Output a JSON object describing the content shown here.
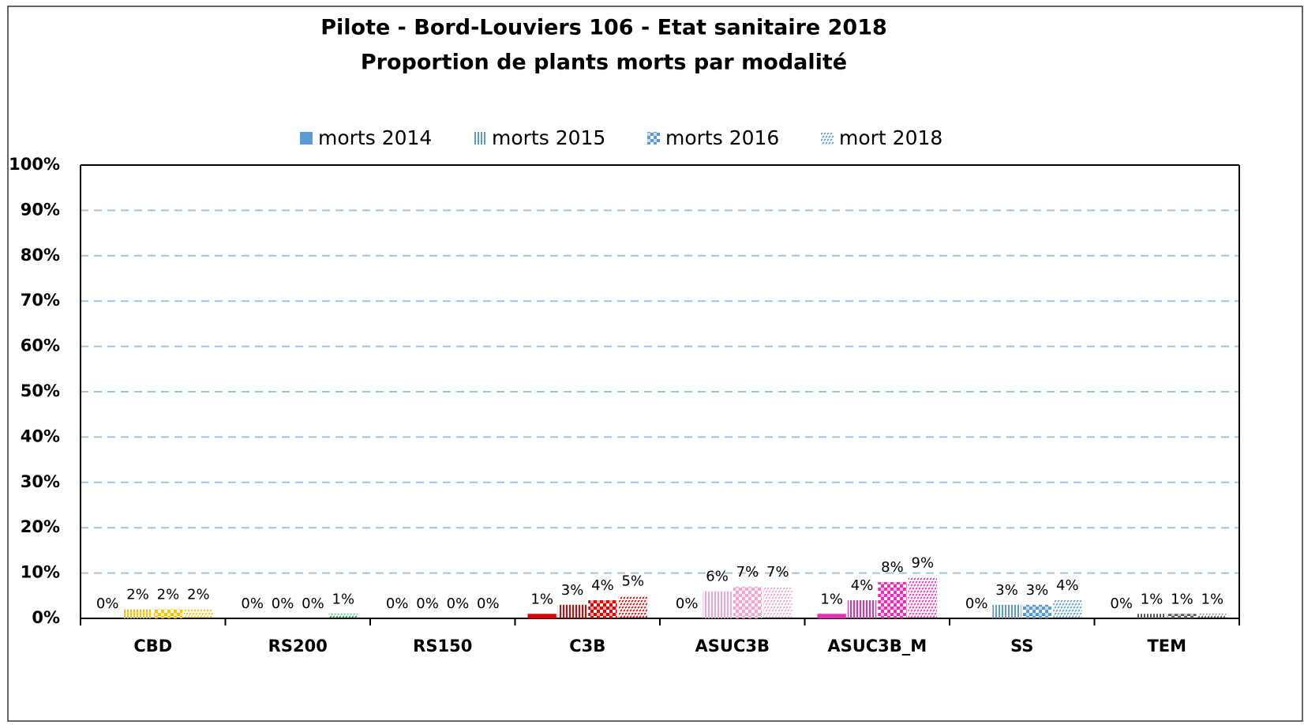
{
  "chart_data": {
    "type": "bar",
    "title": [
      "Pilote - Bord-Louviers 106 - Etat sanitaire 2018",
      "Proportion de plants morts par modalité"
    ],
    "categories": [
      "CBD",
      "RS200",
      "RS150",
      "C3B",
      "ASUC3B",
      "ASUC3B_M",
      "SS",
      "TEM"
    ],
    "category_colors": [
      "#FFC000",
      "#00B050",
      "#7030A0",
      "#E00000",
      "#F4A6D0",
      "#E62EB8",
      "#5B9BD5",
      "#595959"
    ],
    "series": [
      {
        "name": "morts 2014",
        "color": "#5B9BD5",
        "pattern": "solid",
        "values": [
          0,
          0,
          0,
          1,
          0,
          1,
          0,
          0
        ],
        "value_labels": [
          "0%",
          "0%",
          "0%",
          "1%",
          "0%",
          "1%",
          "0%",
          "0%"
        ]
      },
      {
        "name": "morts 2015",
        "color": "#5B9BD5",
        "pattern": "vertical",
        "values": [
          2,
          0,
          0,
          3,
          6,
          4,
          3,
          1
        ],
        "value_labels": [
          "2%",
          "0%",
          "0%",
          "3%",
          "6%",
          "4%",
          "3%",
          "1%"
        ]
      },
      {
        "name": "morts 2016",
        "color": "#5B9BD5",
        "pattern": "checker",
        "values": [
          2,
          0,
          0,
          4,
          7,
          8,
          3,
          1
        ],
        "value_labels": [
          "2%",
          "0%",
          "0%",
          "4%",
          "7%",
          "8%",
          "3%",
          "1%"
        ]
      },
      {
        "name": "mort 2018",
        "color": "#5B9BD5",
        "pattern": "dots",
        "values": [
          2,
          1,
          0,
          5,
          7,
          9,
          4,
          1
        ],
        "value_labels": [
          "2%",
          "1%",
          "0%",
          "5%",
          "7%",
          "9%",
          "4%",
          "1%"
        ]
      }
    ],
    "ylim": [
      0,
      100
    ],
    "yticks": [
      {
        "value": 0,
        "label": "0%"
      },
      {
        "value": 10,
        "label": "10%"
      },
      {
        "value": 20,
        "label": "20%"
      },
      {
        "value": 30,
        "label": "30%"
      },
      {
        "value": 40,
        "label": "40%"
      },
      {
        "value": 50,
        "label": "50%"
      },
      {
        "value": 60,
        "label": "60%"
      },
      {
        "value": 70,
        "label": "70%"
      },
      {
        "value": 80,
        "label": "80%"
      },
      {
        "value": 90,
        "label": "90%"
      },
      {
        "value": 100,
        "label": "100%"
      }
    ],
    "grid": true,
    "legend": "top"
  }
}
